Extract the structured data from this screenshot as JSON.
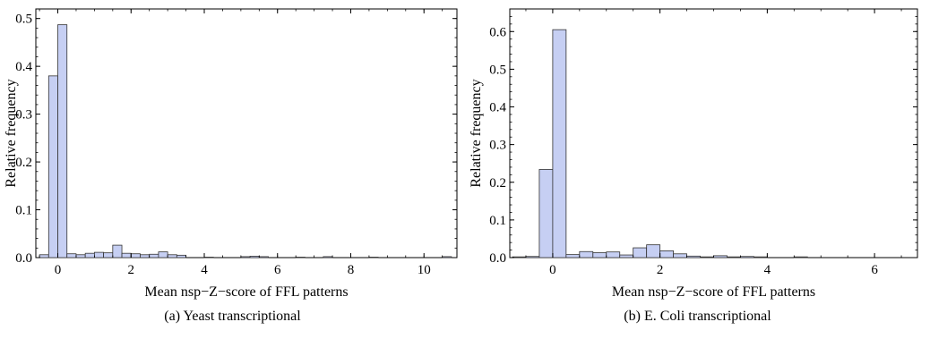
{
  "chart_data": [
    {
      "type": "bar",
      "caption": "(a)  Yeast transcriptional",
      "xlabel": "Mean nsp−Z−score of FFL patterns",
      "ylabel": "Relative frequency",
      "xlim": [
        -0.6,
        10.9
      ],
      "ylim": [
        0,
        0.52
      ],
      "xticks": [
        0,
        2,
        4,
        6,
        8,
        10
      ],
      "yticks": [
        0.0,
        0.1,
        0.2,
        0.3,
        0.4,
        0.5
      ],
      "bin_width": 0.25,
      "bar_color": "#c6cff3",
      "bins": [
        {
          "x0": -0.5,
          "value": 0.006
        },
        {
          "x0": -0.25,
          "value": 0.38
        },
        {
          "x0": 0.0,
          "value": 0.487
        },
        {
          "x0": 0.25,
          "value": 0.008
        },
        {
          "x0": 0.5,
          "value": 0.006
        },
        {
          "x0": 0.75,
          "value": 0.009
        },
        {
          "x0": 1.0,
          "value": 0.011
        },
        {
          "x0": 1.25,
          "value": 0.01
        },
        {
          "x0": 1.5,
          "value": 0.026
        },
        {
          "x0": 1.75,
          "value": 0.009
        },
        {
          "x0": 2.0,
          "value": 0.008
        },
        {
          "x0": 2.25,
          "value": 0.006
        },
        {
          "x0": 2.5,
          "value": 0.007
        },
        {
          "x0": 2.75,
          "value": 0.012
        },
        {
          "x0": 3.0,
          "value": 0.006
        },
        {
          "x0": 3.25,
          "value": 0.005
        },
        {
          "x0": 4.0,
          "value": 0.001
        },
        {
          "x0": 5.0,
          "value": 0.002
        },
        {
          "x0": 5.25,
          "value": 0.003
        },
        {
          "x0": 5.5,
          "value": 0.002
        },
        {
          "x0": 6.5,
          "value": 0.001
        },
        {
          "x0": 7.25,
          "value": 0.002
        },
        {
          "x0": 8.5,
          "value": 0.001
        },
        {
          "x0": 10.5,
          "value": 0.002
        }
      ]
    },
    {
      "type": "bar",
      "caption": "(b)  E. Coli transcriptional",
      "xlabel": "Mean nsp−Z−score of FFL patterns",
      "ylabel": "Relative frequency",
      "xlim": [
        -0.8,
        6.8
      ],
      "ylim": [
        0,
        0.66
      ],
      "xticks": [
        0,
        2,
        4,
        6
      ],
      "yticks": [
        0.0,
        0.1,
        0.2,
        0.3,
        0.4,
        0.5,
        0.6
      ],
      "bin_width": 0.25,
      "bar_color": "#c6cff3",
      "bins": [
        {
          "x0": -0.75,
          "value": 0.002
        },
        {
          "x0": -0.5,
          "value": 0.003
        },
        {
          "x0": -0.25,
          "value": 0.234
        },
        {
          "x0": 0.0,
          "value": 0.605
        },
        {
          "x0": 0.25,
          "value": 0.008
        },
        {
          "x0": 0.5,
          "value": 0.016
        },
        {
          "x0": 0.75,
          "value": 0.013
        },
        {
          "x0": 1.0,
          "value": 0.015
        },
        {
          "x0": 1.25,
          "value": 0.007
        },
        {
          "x0": 1.5,
          "value": 0.026
        },
        {
          "x0": 1.75,
          "value": 0.034
        },
        {
          "x0": 2.0,
          "value": 0.018
        },
        {
          "x0": 2.25,
          "value": 0.01
        },
        {
          "x0": 2.5,
          "value": 0.004
        },
        {
          "x0": 2.75,
          "value": 0.002
        },
        {
          "x0": 3.0,
          "value": 0.005
        },
        {
          "x0": 3.25,
          "value": 0.002
        },
        {
          "x0": 3.5,
          "value": 0.003
        },
        {
          "x0": 3.75,
          "value": 0.002
        },
        {
          "x0": 4.5,
          "value": 0.002
        }
      ]
    }
  ]
}
